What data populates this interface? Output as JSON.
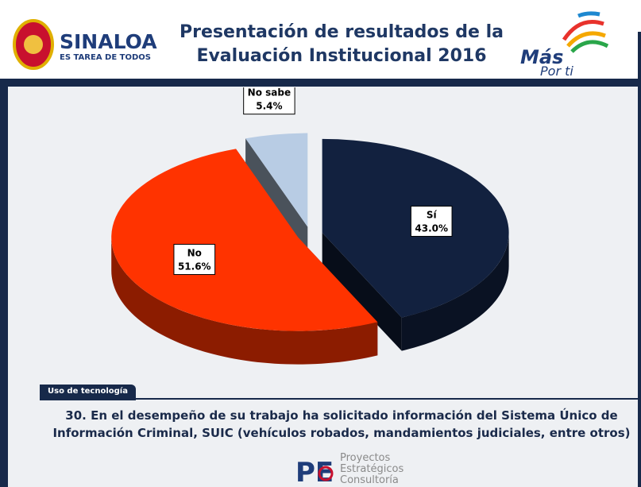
{
  "header": {
    "brand": "SINALOA",
    "slogan": "ES TAREA DE TODOS",
    "title": "Presentación de resultados de la Evaluación Institucional 2016",
    "right_logo_top": "Más",
    "right_logo_bottom": "Por ti"
  },
  "chart_data": {
    "type": "pie",
    "categories": [
      "Sí",
      "No",
      "No sabe"
    ],
    "values": [
      43.0,
      51.6,
      5.4
    ],
    "value_labels": [
      "43.0%",
      "51.6%",
      "5.4%"
    ],
    "colors": [
      "#12213f",
      "#ff3300",
      "#b8cce4"
    ]
  },
  "section_tag": "Uso de tecnología",
  "question": "30. En el desempeño de su trabajo ha solicitado información del Sistema Único de Información Criminal, SUIC (vehículos robados, mandamientos judiciales, entre otros)",
  "footer": {
    "line1": "Proyectos",
    "line2": "Estratégicos",
    "line3": "Consultoría"
  }
}
